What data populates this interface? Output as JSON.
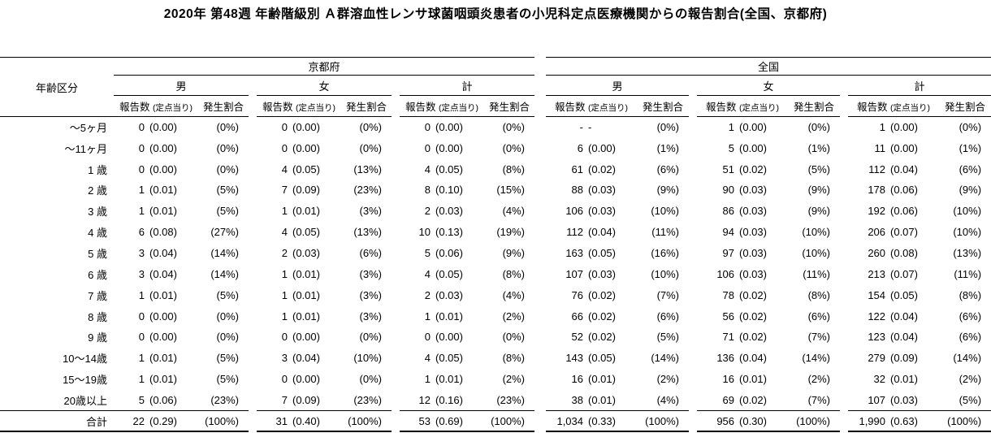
{
  "title": "2020年 第48週 年齢階級別 Ａ群溶血性レンサ球菌咽頭炎患者の小児科定点医療機関からの報告割合(全国、京都府)",
  "table": {
    "corner_label": "年齢区分",
    "regions": [
      {
        "label": "京都府"
      },
      {
        "label": "全国"
      }
    ],
    "sex_groups": [
      "男",
      "女",
      "計"
    ],
    "col_headers": {
      "reports": "報告数",
      "per_sentinel": "(定点当り)",
      "rate": "発生割合"
    },
    "rows": [
      {
        "age": "～5ヶ月",
        "cells": [
          [
            "0",
            "(0.00)",
            "(0%)"
          ],
          [
            "0",
            "(0.00)",
            "(0%)"
          ],
          [
            "0",
            "(0.00)",
            "(0%)"
          ],
          [
            "-",
            "-",
            "(0%)"
          ],
          [
            "1",
            "(0.00)",
            "(0%)"
          ],
          [
            "1",
            "(0.00)",
            "(0%)"
          ]
        ]
      },
      {
        "age": "～11ヶ月",
        "cells": [
          [
            "0",
            "(0.00)",
            "(0%)"
          ],
          [
            "0",
            "(0.00)",
            "(0%)"
          ],
          [
            "0",
            "(0.00)",
            "(0%)"
          ],
          [
            "6",
            "(0.00)",
            "(1%)"
          ],
          [
            "5",
            "(0.00)",
            "(1%)"
          ],
          [
            "11",
            "(0.00)",
            "(1%)"
          ]
        ]
      },
      {
        "age": "1 歳",
        "cells": [
          [
            "0",
            "(0.00)",
            "(0%)"
          ],
          [
            "4",
            "(0.05)",
            "(13%)"
          ],
          [
            "4",
            "(0.05)",
            "(8%)"
          ],
          [
            "61",
            "(0.02)",
            "(6%)"
          ],
          [
            "51",
            "(0.02)",
            "(5%)"
          ],
          [
            "112",
            "(0.04)",
            "(6%)"
          ]
        ]
      },
      {
        "age": "2 歳",
        "cells": [
          [
            "1",
            "(0.01)",
            "(5%)"
          ],
          [
            "7",
            "(0.09)",
            "(23%)"
          ],
          [
            "8",
            "(0.10)",
            "(15%)"
          ],
          [
            "88",
            "(0.03)",
            "(9%)"
          ],
          [
            "90",
            "(0.03)",
            "(9%)"
          ],
          [
            "178",
            "(0.06)",
            "(9%)"
          ]
        ]
      },
      {
        "age": "3 歳",
        "cells": [
          [
            "1",
            "(0.01)",
            "(5%)"
          ],
          [
            "1",
            "(0.01)",
            "(3%)"
          ],
          [
            "2",
            "(0.03)",
            "(4%)"
          ],
          [
            "106",
            "(0.03)",
            "(10%)"
          ],
          [
            "86",
            "(0.03)",
            "(9%)"
          ],
          [
            "192",
            "(0.06)",
            "(10%)"
          ]
        ]
      },
      {
        "age": "4 歳",
        "cells": [
          [
            "6",
            "(0.08)",
            "(27%)"
          ],
          [
            "4",
            "(0.05)",
            "(13%)"
          ],
          [
            "10",
            "(0.13)",
            "(19%)"
          ],
          [
            "112",
            "(0.04)",
            "(11%)"
          ],
          [
            "94",
            "(0.03)",
            "(10%)"
          ],
          [
            "206",
            "(0.07)",
            "(10%)"
          ]
        ]
      },
      {
        "age": "5 歳",
        "cells": [
          [
            "3",
            "(0.04)",
            "(14%)"
          ],
          [
            "2",
            "(0.03)",
            "(6%)"
          ],
          [
            "5",
            "(0.06)",
            "(9%)"
          ],
          [
            "163",
            "(0.05)",
            "(16%)"
          ],
          [
            "97",
            "(0.03)",
            "(10%)"
          ],
          [
            "260",
            "(0.08)",
            "(13%)"
          ]
        ]
      },
      {
        "age": "6 歳",
        "cells": [
          [
            "3",
            "(0.04)",
            "(14%)"
          ],
          [
            "1",
            "(0.01)",
            "(3%)"
          ],
          [
            "4",
            "(0.05)",
            "(8%)"
          ],
          [
            "107",
            "(0.03)",
            "(10%)"
          ],
          [
            "106",
            "(0.03)",
            "(11%)"
          ],
          [
            "213",
            "(0.07)",
            "(11%)"
          ]
        ]
      },
      {
        "age": "7 歳",
        "cells": [
          [
            "1",
            "(0.01)",
            "(5%)"
          ],
          [
            "1",
            "(0.01)",
            "(3%)"
          ],
          [
            "2",
            "(0.03)",
            "(4%)"
          ],
          [
            "76",
            "(0.02)",
            "(7%)"
          ],
          [
            "78",
            "(0.02)",
            "(8%)"
          ],
          [
            "154",
            "(0.05)",
            "(8%)"
          ]
        ]
      },
      {
        "age": "8 歳",
        "cells": [
          [
            "0",
            "(0.00)",
            "(0%)"
          ],
          [
            "1",
            "(0.01)",
            "(3%)"
          ],
          [
            "1",
            "(0.01)",
            "(2%)"
          ],
          [
            "66",
            "(0.02)",
            "(6%)"
          ],
          [
            "56",
            "(0.02)",
            "(6%)"
          ],
          [
            "122",
            "(0.04)",
            "(6%)"
          ]
        ]
      },
      {
        "age": "9 歳",
        "cells": [
          [
            "0",
            "(0.00)",
            "(0%)"
          ],
          [
            "0",
            "(0.00)",
            "(0%)"
          ],
          [
            "0",
            "(0.00)",
            "(0%)"
          ],
          [
            "52",
            "(0.02)",
            "(5%)"
          ],
          [
            "71",
            "(0.02)",
            "(7%)"
          ],
          [
            "123",
            "(0.04)",
            "(6%)"
          ]
        ]
      },
      {
        "age": "10～14歳",
        "cells": [
          [
            "1",
            "(0.01)",
            "(5%)"
          ],
          [
            "3",
            "(0.04)",
            "(10%)"
          ],
          [
            "4",
            "(0.05)",
            "(8%)"
          ],
          [
            "143",
            "(0.05)",
            "(14%)"
          ],
          [
            "136",
            "(0.04)",
            "(14%)"
          ],
          [
            "279",
            "(0.09)",
            "(14%)"
          ]
        ]
      },
      {
        "age": "15～19歳",
        "cells": [
          [
            "1",
            "(0.01)",
            "(5%)"
          ],
          [
            "0",
            "(0.00)",
            "(0%)"
          ],
          [
            "1",
            "(0.01)",
            "(2%)"
          ],
          [
            "16",
            "(0.01)",
            "(2%)"
          ],
          [
            "16",
            "(0.01)",
            "(2%)"
          ],
          [
            "32",
            "(0.01)",
            "(2%)"
          ]
        ]
      },
      {
        "age": "20歳以上",
        "cells": [
          [
            "5",
            "(0.06)",
            "(23%)"
          ],
          [
            "7",
            "(0.09)",
            "(23%)"
          ],
          [
            "12",
            "(0.16)",
            "(23%)"
          ],
          [
            "38",
            "(0.01)",
            "(4%)"
          ],
          [
            "69",
            "(0.02)",
            "(7%)"
          ],
          [
            "107",
            "(0.03)",
            "(5%)"
          ]
        ]
      }
    ],
    "total": {
      "age": "合計",
      "cells": [
        [
          "22",
          "(0.29)",
          "(100%)"
        ],
        [
          "31",
          "(0.40)",
          "(100%)"
        ],
        [
          "53",
          "(0.69)",
          "(100%)"
        ],
        [
          "1,034",
          "(0.33)",
          "(100%)"
        ],
        [
          "956",
          "(0.30)",
          "(100%)"
        ],
        [
          "1,990",
          "(0.63)",
          "(100%)"
        ]
      ]
    }
  }
}
